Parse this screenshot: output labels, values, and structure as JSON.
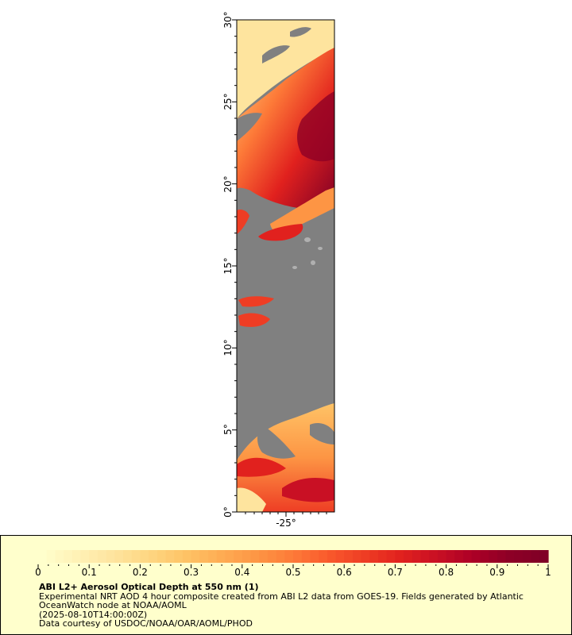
{
  "map": {
    "y_axis_labels": [
      "0°",
      "5°",
      "10°",
      "15°",
      "20°",
      "25°",
      "30°"
    ],
    "x_axis_labels": [
      "-25°"
    ],
    "land_color": "#808080",
    "island_color": "#b0b0b0"
  },
  "legend": {
    "colorbar_colors": [
      "#ffffcc",
      "#fff1b5",
      "#fee49e",
      "#fed681",
      "#fec366",
      "#feac53",
      "#fd9544",
      "#fd7a38",
      "#f9592c",
      "#ee3d24",
      "#e1211e",
      "#c91024",
      "#ad0026",
      "#8e0026",
      "#800026"
    ],
    "tick_labels": [
      "0",
      "0.1",
      "0.2",
      "0.3",
      "0.4",
      "0.5",
      "0.6",
      "0.7",
      "0.8",
      "0.9",
      "1"
    ],
    "title": "ABI L2+ Aerosol Optical Depth at 550 nm (1)",
    "line1": "Experimental NRT AOD 4 hour composite created from ABI L2 data from GOES-19. Fields generated by Atlantic OceanWatch node at NOAA/AOML",
    "line2": "(2025-08-10T14:00:00Z)",
    "line3": "Data courtesy of USDOC/NOAA/OAR/AOML/PHOD"
  }
}
